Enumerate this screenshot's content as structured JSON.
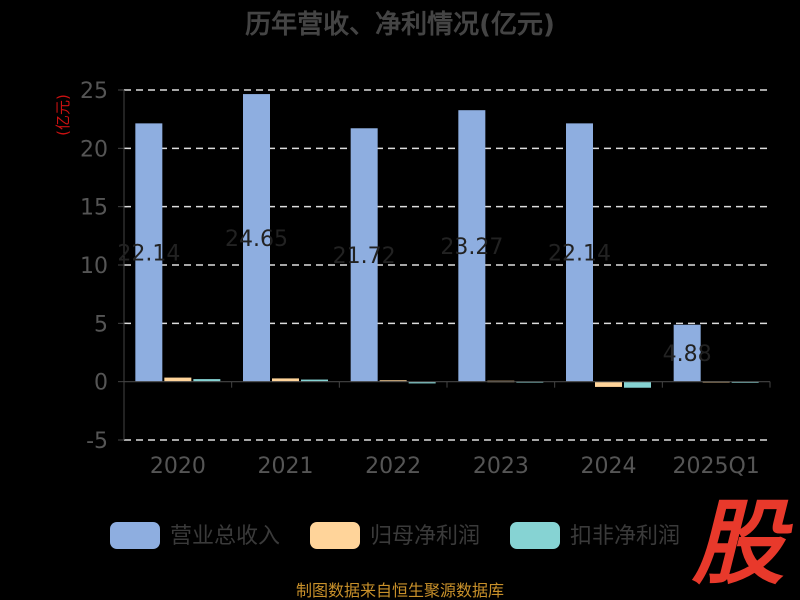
{
  "chart_data": {
    "type": "bar",
    "title": "历年营收、净利情况(亿元)",
    "ylabel": "(亿元)",
    "xlabel": "",
    "categories": [
      "2020",
      "2021",
      "2022",
      "2023",
      "2024",
      "2025Q1"
    ],
    "ylim": [
      -5,
      25
    ],
    "yticks": [
      -5,
      0,
      5,
      10,
      15,
      20,
      25
    ],
    "grid": true,
    "legend_position": "bottom",
    "series": [
      {
        "name": "营业总收入",
        "color": "#8eaee0",
        "values": [
          22.14,
          24.65,
          21.72,
          23.27,
          22.14,
          4.88
        ]
      },
      {
        "name": "归母净利润",
        "color": "#ffd49a",
        "values": [
          0.35,
          0.28,
          0.12,
          0.08,
          -0.45,
          0.05
        ]
      },
      {
        "name": "扣非净利润",
        "color": "#86d3d3",
        "values": [
          0.22,
          0.18,
          -0.15,
          0.04,
          -0.52,
          0.03
        ]
      }
    ],
    "data_labels": [
      "22.14",
      "24.65",
      "21.72",
      "23.27",
      "22.14",
      "4.88"
    ]
  },
  "footer": "制图数据来自恒生聚源数据库",
  "logo_text": "股"
}
